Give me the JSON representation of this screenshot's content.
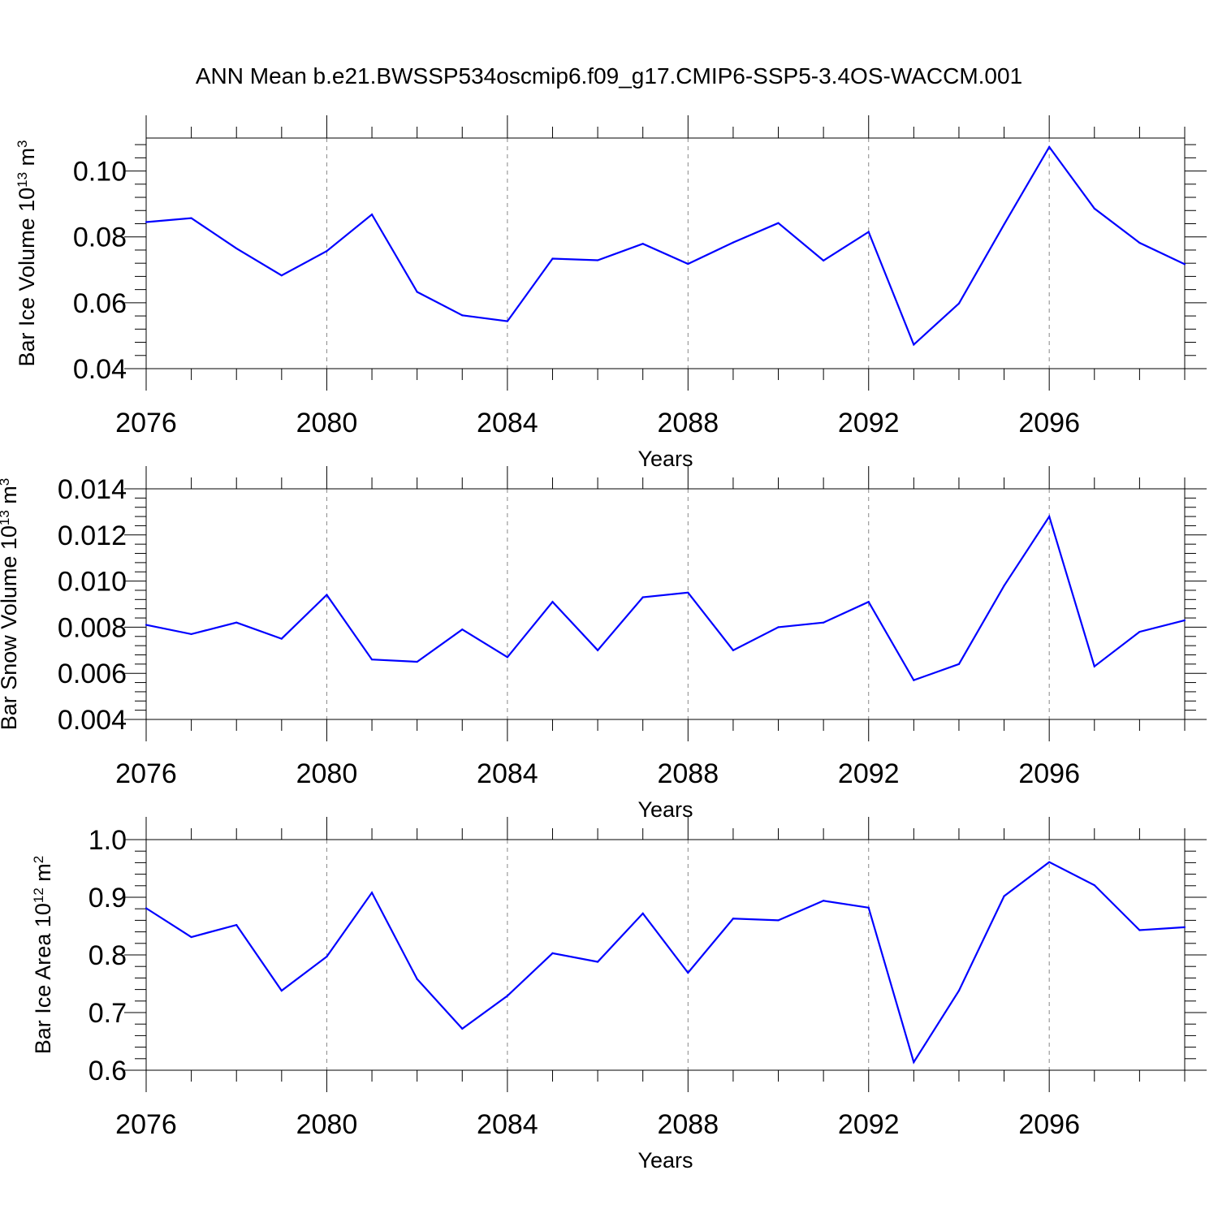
{
  "title": "ANN Mean b.e21.BWSSP534oscmip6.f09_g17.CMIP6-SSP5-3.4OS-WACCM.001",
  "colors": {
    "line": "#0000ff",
    "axis": "#000000",
    "grid": "#888888"
  },
  "chart_data": [
    {
      "type": "line",
      "title": "",
      "xlabel": "Years",
      "ylabel": {
        "text": "Bar Ice Volume 10",
        "exp": "13",
        "unit": " m",
        "unit_exp": "3"
      },
      "xlim": [
        2076,
        2099
      ],
      "ylim": [
        0.04,
        0.11
      ],
      "xticks": [
        2076,
        2080,
        2084,
        2088,
        2092,
        2096
      ],
      "xtick_labels": [
        "2076",
        "2080",
        "2084",
        "2088",
        "2092",
        "2096"
      ],
      "yticks": [
        0.04,
        0.06,
        0.08,
        0.1
      ],
      "ytick_labels": [
        "0.04",
        "0.06",
        "0.08",
        "0.10"
      ],
      "x": [
        2076,
        2077,
        2078,
        2079,
        2080,
        2081,
        2082,
        2083,
        2084,
        2085,
        2086,
        2087,
        2088,
        2089,
        2090,
        2091,
        2092,
        2093,
        2094,
        2095,
        2096,
        2097,
        2098,
        2099
      ],
      "y": [
        0.0845,
        0.0857,
        0.0765,
        0.0683,
        0.0757,
        0.0868,
        0.0633,
        0.0562,
        0.0544,
        0.0734,
        0.0729,
        0.0779,
        0.0718,
        0.0783,
        0.0842,
        0.0728,
        0.0815,
        0.0473,
        0.0598,
        0.0838,
        0.1073,
        0.0886,
        0.0782,
        0.0717
      ],
      "grid_x": [
        2080,
        2084,
        2088,
        2092,
        2096
      ]
    },
    {
      "type": "line",
      "title": "",
      "xlabel": "Years",
      "ylabel": {
        "text": "Bar Snow Volume 10",
        "exp": "13",
        "unit": " m",
        "unit_exp": "3"
      },
      "xlim": [
        2076,
        2099
      ],
      "ylim": [
        0.004,
        0.014
      ],
      "xticks": [
        2076,
        2080,
        2084,
        2088,
        2092,
        2096
      ],
      "xtick_labels": [
        "2076",
        "2080",
        "2084",
        "2088",
        "2092",
        "2096"
      ],
      "yticks": [
        0.004,
        0.006,
        0.008,
        0.01,
        0.012,
        0.014
      ],
      "ytick_labels": [
        "0.004",
        "0.006",
        "0.008",
        "0.010",
        "0.012",
        "0.014"
      ],
      "x": [
        2076,
        2077,
        2078,
        2079,
        2080,
        2081,
        2082,
        2083,
        2084,
        2085,
        2086,
        2087,
        2088,
        2089,
        2090,
        2091,
        2092,
        2093,
        2094,
        2095,
        2096,
        2097,
        2098,
        2099
      ],
      "y": [
        0.0081,
        0.0077,
        0.0082,
        0.0075,
        0.0094,
        0.0066,
        0.0065,
        0.0079,
        0.0067,
        0.0091,
        0.007,
        0.0093,
        0.0095,
        0.007,
        0.008,
        0.0082,
        0.0091,
        0.0057,
        0.0064,
        0.0098,
        0.0128,
        0.0063,
        0.0078,
        0.0083
      ],
      "grid_x": [
        2080,
        2084,
        2088,
        2092,
        2096
      ]
    },
    {
      "type": "line",
      "title": "",
      "xlabel": "Years",
      "ylabel": {
        "text": "Bar Ice Area 10",
        "exp": "12",
        "unit": " m",
        "unit_exp": "2"
      },
      "xlim": [
        2076,
        2099
      ],
      "ylim": [
        0.6,
        1.0
      ],
      "xticks": [
        2076,
        2080,
        2084,
        2088,
        2092,
        2096
      ],
      "xtick_labels": [
        "2076",
        "2080",
        "2084",
        "2088",
        "2092",
        "2096"
      ],
      "yticks": [
        0.6,
        0.7,
        0.8,
        0.9,
        1.0
      ],
      "ytick_labels": [
        "0.6",
        "0.7",
        "0.8",
        "0.9",
        "1.0"
      ],
      "x": [
        2076,
        2077,
        2078,
        2079,
        2080,
        2081,
        2082,
        2083,
        2084,
        2085,
        2086,
        2087,
        2088,
        2089,
        2090,
        2091,
        2092,
        2093,
        2094,
        2095,
        2096,
        2097,
        2098,
        2099
      ],
      "y": [
        0.881,
        0.831,
        0.852,
        0.738,
        0.797,
        0.908,
        0.758,
        0.672,
        0.729,
        0.803,
        0.788,
        0.872,
        0.769,
        0.863,
        0.86,
        0.894,
        0.882,
        0.614,
        0.738,
        0.902,
        0.961,
        0.921,
        0.843,
        0.848
      ],
      "grid_x": [
        2080,
        2084,
        2088,
        2092,
        2096
      ]
    }
  ]
}
